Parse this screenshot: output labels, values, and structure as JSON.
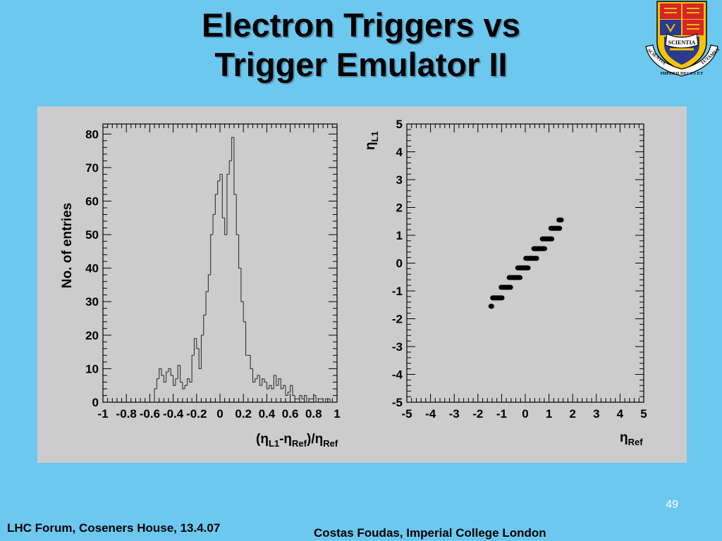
{
  "slide": {
    "title_line1": "Electron Triggers vs",
    "title_line2": "Trigger Emulator II",
    "page_number": "49",
    "footer_left": "LHC Forum, Coseners House, 13.4.07",
    "footer_right": "Costas Foudas, Imperial College London"
  },
  "crest": {
    "ribbon_text": "SCIENTIA",
    "motto_left": "SCIENTIA",
    "motto_bottom": "IMPERII DECUS ET",
    "motto_right": "TUTAMEN",
    "colors": {
      "shield_red": "#d8232a",
      "shield_blue": "#2b3990",
      "gold": "#f5c400",
      "ribbon": "#ffffff"
    }
  },
  "chart_data": [
    {
      "type": "bar",
      "style": "histogram-step",
      "title": "",
      "xlabel": "(ηL1-ηRef)/ηRef",
      "ylabel": "No. of entries",
      "xlim": [
        -1,
        1
      ],
      "ylim": [
        0,
        83
      ],
      "grid": false,
      "legend": "none",
      "xticks": [
        "-1",
        "-0.8",
        "-0.6",
        "-0.4",
        "-0.2",
        "0",
        "0.2",
        "0.4",
        "0.6",
        "0.8",
        "1"
      ],
      "yticks": [
        "0",
        "10",
        "20",
        "30",
        "40",
        "50",
        "60",
        "70",
        "80"
      ],
      "bin_width": 0.02,
      "x": [
        -0.56,
        -0.54,
        -0.52,
        -0.5,
        -0.48,
        -0.46,
        -0.44,
        -0.42,
        -0.4,
        -0.38,
        -0.36,
        -0.34,
        -0.32,
        -0.3,
        -0.28,
        -0.26,
        -0.24,
        -0.22,
        -0.2,
        -0.18,
        -0.16,
        -0.14,
        -0.12,
        -0.1,
        -0.08,
        -0.06,
        -0.04,
        -0.02,
        0.0,
        0.02,
        0.04,
        0.06,
        0.08,
        0.1,
        0.12,
        0.14,
        0.16,
        0.18,
        0.2,
        0.22,
        0.24,
        0.26,
        0.28,
        0.3,
        0.32,
        0.34,
        0.36,
        0.38,
        0.4,
        0.42,
        0.44,
        0.46,
        0.48,
        0.5,
        0.52,
        0.54,
        0.56,
        0.58,
        0.6,
        0.62,
        0.64,
        0.66,
        0.68,
        0.7,
        0.72,
        0.74,
        0.76,
        0.78,
        0.8,
        0.82,
        0.84,
        0.86,
        0.88,
        0.9,
        0.92,
        0.94
      ],
      "values": [
        4,
        7,
        10,
        8,
        6,
        9,
        10,
        8,
        5,
        7,
        11,
        6,
        4,
        5,
        7,
        6,
        14,
        19,
        16,
        10,
        20,
        26,
        33,
        38,
        50,
        56,
        62,
        66,
        68,
        55,
        50,
        68,
        72,
        79,
        62,
        50,
        40,
        30,
        24,
        14,
        14,
        10,
        6,
        7,
        8,
        5,
        7,
        6,
        4,
        5,
        4,
        8,
        5,
        7,
        4,
        5,
        2,
        3,
        5,
        2,
        1,
        1,
        2,
        1,
        2,
        0,
        1,
        1,
        2,
        0,
        1,
        1,
        0,
        1,
        1,
        0
      ]
    },
    {
      "type": "scatter",
      "title": "",
      "xlabel": "ηRef",
      "ylabel": "ηL1",
      "xlim": [
        -5,
        5
      ],
      "ylim": [
        -5,
        5
      ],
      "grid": false,
      "legend": "none",
      "xticks": [
        "-5",
        "-4",
        "-3",
        "-2",
        "-1",
        "0",
        "1",
        "2",
        "3",
        "4",
        "5"
      ],
      "yticks": [
        "-5",
        "-4",
        "-3",
        "-2",
        "-1",
        "0",
        "1",
        "2",
        "3",
        "4",
        "5"
      ],
      "segments": [
        {
          "x": [
            -1.45,
            -1.42
          ],
          "y": -1.55
        },
        {
          "x": [
            -1.38,
            -0.98
          ],
          "y": -1.25
        },
        {
          "x": [
            -1.02,
            -0.62
          ],
          "y": -0.87
        },
        {
          "x": [
            -0.68,
            -0.22
          ],
          "y": -0.52
        },
        {
          "x": [
            -0.32,
            0.12
          ],
          "y": -0.17
        },
        {
          "x": [
            0.02,
            0.48
          ],
          "y": 0.17
        },
        {
          "x": [
            0.36,
            0.82
          ],
          "y": 0.52
        },
        {
          "x": [
            0.72,
            1.12
          ],
          "y": 0.87
        },
        {
          "x": [
            1.08,
            1.45
          ],
          "y": 1.25
        },
        {
          "x": [
            1.42,
            1.52
          ],
          "y": 1.55
        }
      ]
    }
  ]
}
